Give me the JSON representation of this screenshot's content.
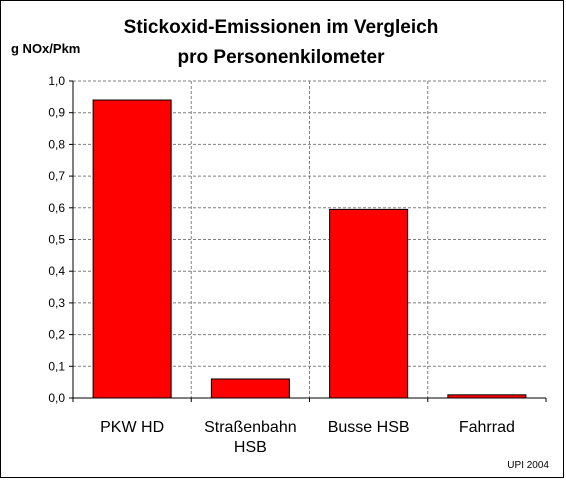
{
  "chart_data": {
    "type": "bar",
    "title_lines": [
      "Stickoxid-Emissionen im Vergleich",
      "pro Personenkilometer"
    ],
    "ylabel": "g NOx/Pkm",
    "xlabel": "",
    "categories": [
      [
        "PKW HD"
      ],
      [
        "Straßenbahn",
        "HSB"
      ],
      [
        "Busse HSB"
      ],
      [
        "Fahrrad"
      ]
    ],
    "values": [
      0.94,
      0.06,
      0.595,
      0.01
    ],
    "ylim": [
      0,
      1.0
    ],
    "yticks": [
      "0,0",
      "0,1",
      "0,2",
      "0,3",
      "0,4",
      "0,5",
      "0,6",
      "0,7",
      "0,8",
      "0,9",
      "1,0"
    ],
    "grid": true,
    "legend": "none",
    "bar_color": "#ff0000",
    "bar_edge_color": "#000000",
    "gridline_color": "#808080",
    "source_note": "UPI 2004"
  }
}
